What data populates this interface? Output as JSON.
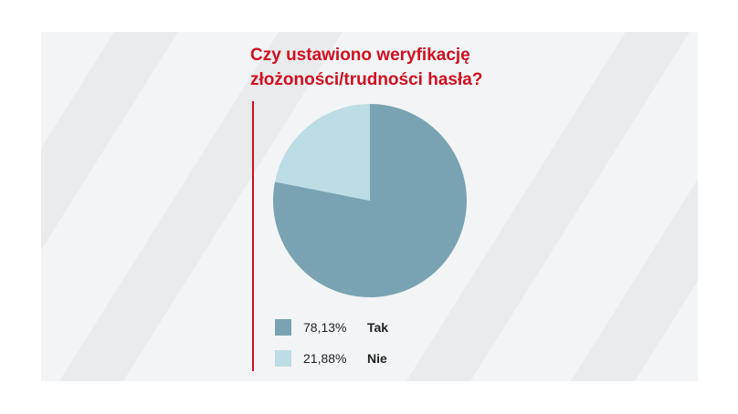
{
  "chart_data": {
    "type": "pie",
    "title": "Czy ustawiono weryfikację złożoności/trudności hasła?",
    "title_lines": [
      "Czy ustawiono weryfikację",
      "złożoności/trudności hasła?"
    ],
    "slices": [
      {
        "label": "Tak",
        "value": 78.13,
        "display": "78,13%",
        "color": "#79a3b2"
      },
      {
        "label": "Nie",
        "value": 21.88,
        "display": "21,88%",
        "color": "#bcdce6"
      }
    ],
    "start": "12 o'clock",
    "direction": "clockwise",
    "legend_position": "bottom-left"
  },
  "colors": {
    "title": "#d0101f",
    "accent_line": "#d0101f",
    "panel_background": "#f3f4f5",
    "stripes": "#eaebec"
  }
}
